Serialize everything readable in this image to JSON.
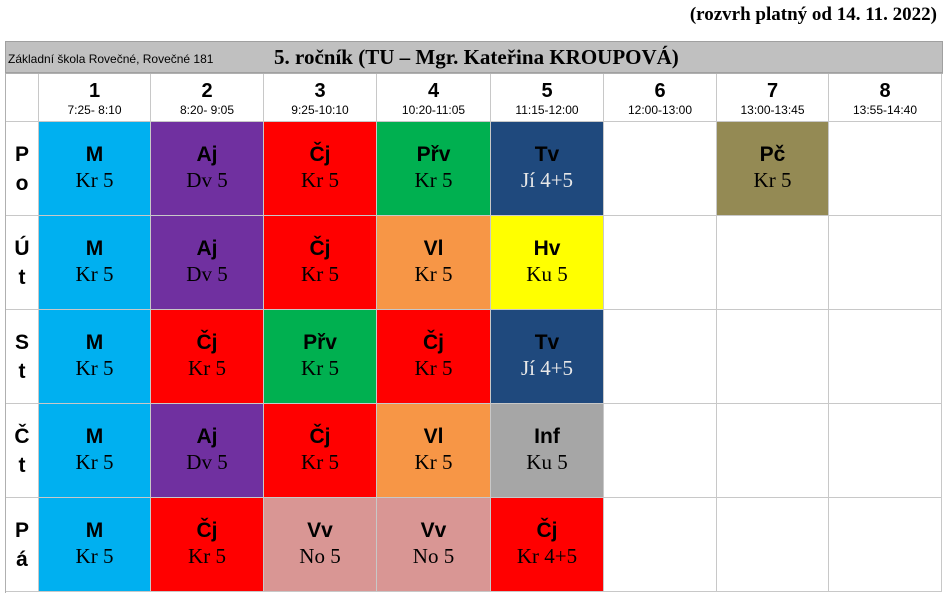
{
  "validity": "(rozvrh platný od 14. 11. 2022)",
  "header": {
    "school": "Základní škola Rovečné, Rovečné 181",
    "class": "5. ročník  (TU – Mgr. Kateřina KROUPOVÁ)"
  },
  "periods": [
    {
      "num": "1",
      "time": "7:25- 8:10"
    },
    {
      "num": "2",
      "time": "8:20- 9:05"
    },
    {
      "num": "3",
      "time": "9:25-10:10"
    },
    {
      "num": "4",
      "time": "10:20-11:05"
    },
    {
      "num": "5",
      "time": "11:15-12:00"
    },
    {
      "num": "6",
      "time": "12:00-13:00"
    },
    {
      "num": "7",
      "time": "13:00-13:45"
    },
    {
      "num": "8",
      "time": "13:55-14:40"
    }
  ],
  "colors": {
    "M": "#00b0f0",
    "Aj": "#7030a0",
    "Čj": "#ff0000",
    "Přv": "#00b050",
    "Tv": "#1f497d",
    "Pč": "#948a54",
    "Vl": "#f79646",
    "Hv": "#ffff00",
    "Inf": "#a6a6a6",
    "Vv": "#d99694"
  },
  "days": [
    {
      "l1": "P",
      "l2": "o",
      "lessons": [
        {
          "subject": "M",
          "room": "Kr 5"
        },
        {
          "subject": "Aj",
          "room": "Dv 5"
        },
        {
          "subject": "Čj",
          "room": "Kr 5"
        },
        {
          "subject": "Přv",
          "room": "Kr 5"
        },
        {
          "subject": "Tv",
          "room": "Jí 4+5"
        },
        null,
        {
          "subject": "Pč",
          "room": "Kr 5"
        },
        null
      ]
    },
    {
      "l1": "Ú",
      "l2": "t",
      "lessons": [
        {
          "subject": "M",
          "room": "Kr 5"
        },
        {
          "subject": "Aj",
          "room": "Dv 5"
        },
        {
          "subject": "Čj",
          "room": "Kr 5"
        },
        {
          "subject": "Vl",
          "room": "Kr 5"
        },
        {
          "subject": "Hv",
          "room": "Ku 5"
        },
        null,
        null,
        null
      ]
    },
    {
      "l1": "S",
      "l2": "t",
      "lessons": [
        {
          "subject": "M",
          "room": "Kr 5"
        },
        {
          "subject": "Čj",
          "room": "Kr 5"
        },
        {
          "subject": "Přv",
          "room": "Kr 5"
        },
        {
          "subject": "Čj",
          "room": "Kr 5"
        },
        {
          "subject": "Tv",
          "room": "Jí 4+5"
        },
        null,
        null,
        null
      ]
    },
    {
      "l1": "Č",
      "l2": "t",
      "lessons": [
        {
          "subject": "M",
          "room": "Kr 5"
        },
        {
          "subject": "Aj",
          "room": "Dv 5"
        },
        {
          "subject": "Čj",
          "room": "Kr 5"
        },
        {
          "subject": "Vl",
          "room": "Kr 5"
        },
        {
          "subject": "Inf",
          "room": "Ku 5"
        },
        null,
        null,
        null
      ]
    },
    {
      "l1": "P",
      "l2": "á",
      "lessons": [
        {
          "subject": "M",
          "room": "Kr 5"
        },
        {
          "subject": "Čj",
          "room": "Kr 5"
        },
        {
          "subject": "Vv",
          "room": "No 5"
        },
        {
          "subject": "Vv",
          "room": "No 5"
        },
        {
          "subject": "Čj",
          "room": "Kr 4+5"
        },
        null,
        null,
        null
      ]
    }
  ]
}
